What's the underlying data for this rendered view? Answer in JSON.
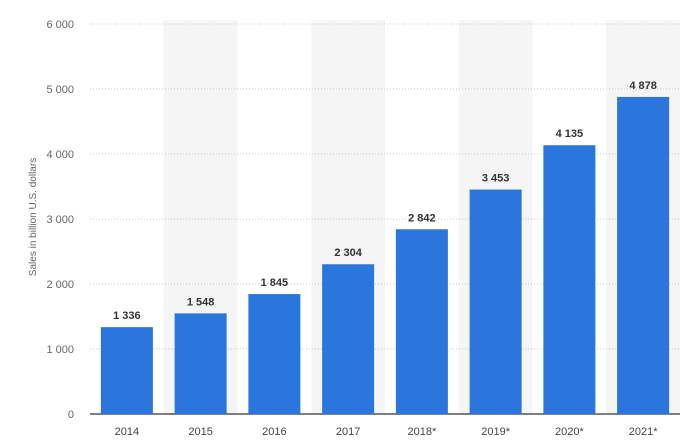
{
  "chart_data": {
    "type": "bar",
    "categories": [
      "2014",
      "2015",
      "2016",
      "2017",
      "2018*",
      "2019*",
      "2020*",
      "2021*"
    ],
    "values": [
      1336,
      1548,
      1845,
      2304,
      2842,
      3453,
      4135,
      4878
    ],
    "value_labels": [
      "1 336",
      "1 548",
      "1 845",
      "2 304",
      "2 842",
      "3 453",
      "4 135",
      "4 878"
    ],
    "ylabel": "Sales in billion U.S. dollars",
    "ylim": [
      0,
      6000
    ],
    "y_ticks": [
      0,
      1000,
      2000,
      3000,
      4000,
      5000,
      6000
    ],
    "y_tick_labels": [
      "0",
      "1 000",
      "2 000",
      "3 000",
      "4 000",
      "5 000",
      "6 000"
    ],
    "grid": true,
    "bar_color": "#2a76dd",
    "band_color": "#f5f5f5"
  }
}
